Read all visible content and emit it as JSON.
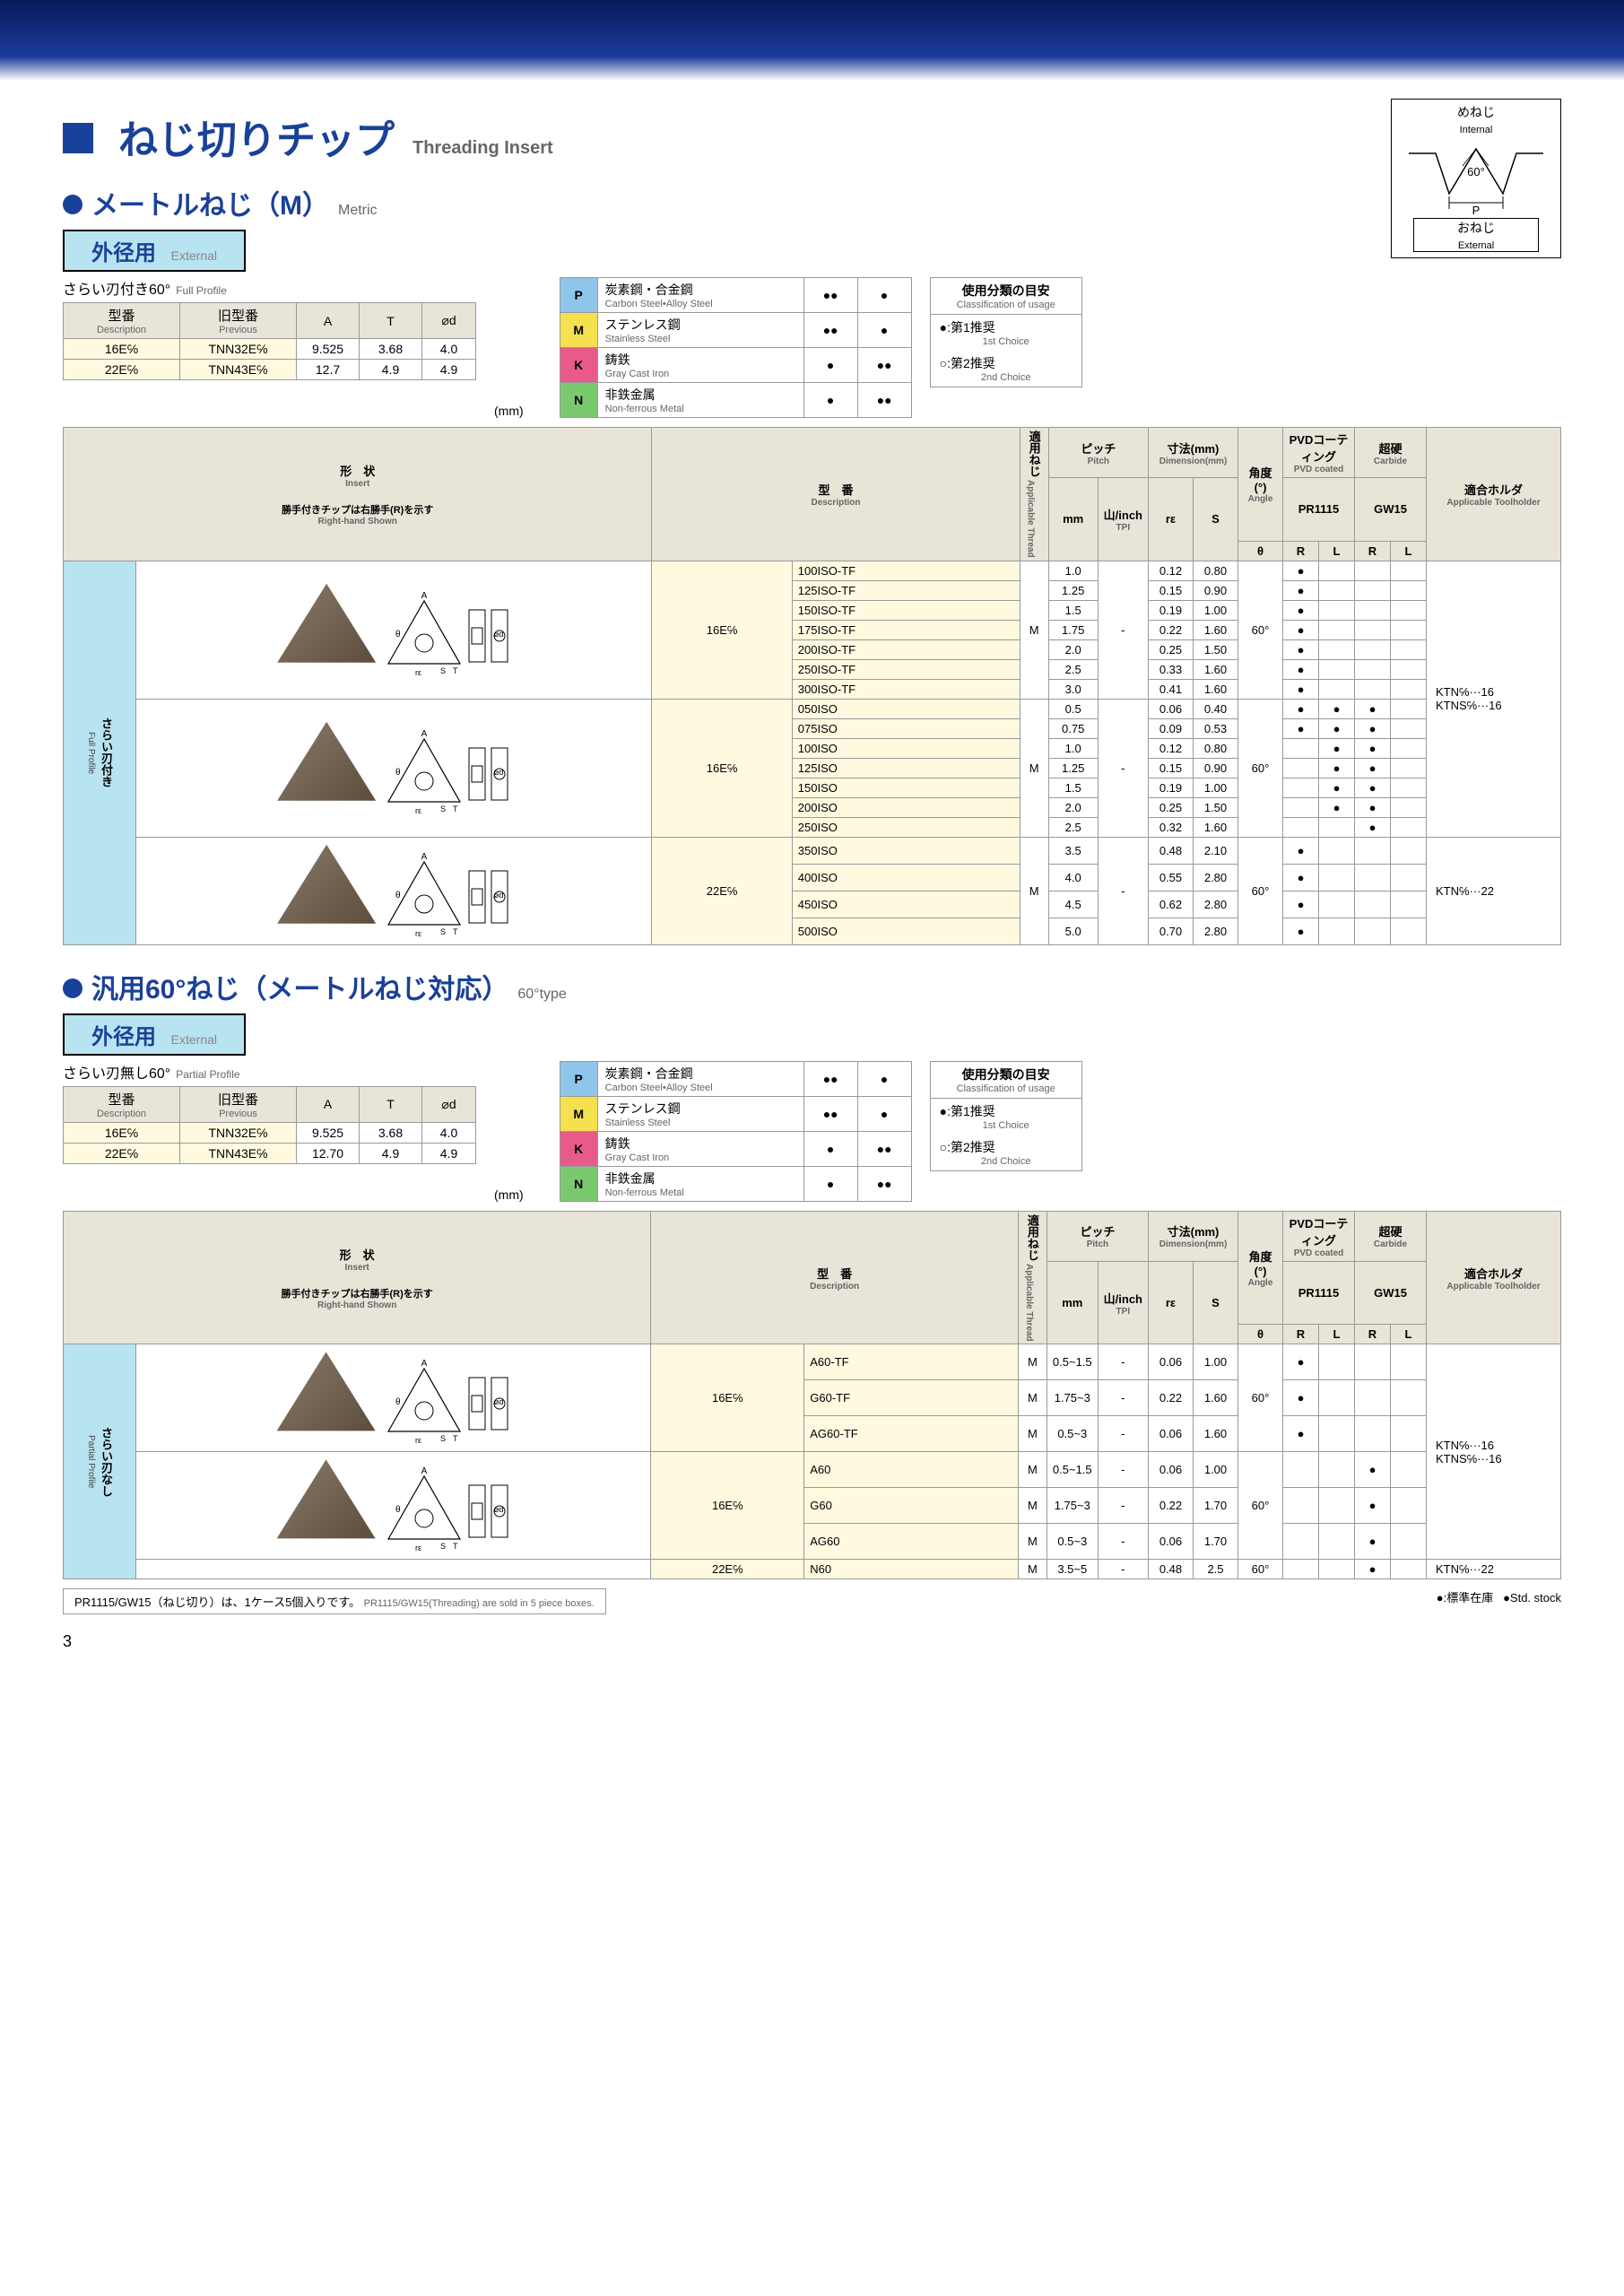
{
  "header": {
    "title_jp": "ねじ切りチップ",
    "title_en": "Threading Insert",
    "section1_jp": "メートルねじ（M）",
    "section1_en": "Metric",
    "section2_jp": "汎用60°ねじ（メートルねじ対応）",
    "section2_en": "60°type",
    "external_jp": "外径用",
    "external_en": "External"
  },
  "diagram": {
    "internal_jp": "めねじ",
    "internal_en": "Internal",
    "angle": "60°",
    "p_label": "P",
    "external_jp": "おねじ",
    "external_en": "External"
  },
  "profile1_jp": "さらい刃付き60°",
  "profile1_en": "Full Profile",
  "profile2_jp": "さらい刃無し60°",
  "profile2_en": "Partial Profile",
  "unit": "(mm)",
  "desc_headers": {
    "desc_jp": "型番",
    "desc_en": "Description",
    "prev_jp": "旧型番",
    "prev_en": "Previous",
    "a": "A",
    "t": "T",
    "od": "⌀d"
  },
  "desc_rows1": [
    {
      "d": "16E℅",
      "p": "TNN32E℅",
      "a": "9.525",
      "t": "3.68",
      "od": "4.0"
    },
    {
      "d": "22E℅",
      "p": "TNN43E℅",
      "a": "12.7",
      "t": "4.9",
      "od": "4.9"
    }
  ],
  "desc_rows2": [
    {
      "d": "16E℅",
      "p": "TNN32E℅",
      "a": "9.525",
      "t": "3.68",
      "od": "4.0"
    },
    {
      "d": "22E℅",
      "p": "TNN43E℅",
      "a": "12.70",
      "t": "4.9",
      "od": "4.9"
    }
  ],
  "materials": [
    {
      "code": "P",
      "bg": "#8ec5e8",
      "jp": "炭素鋼・合金鋼",
      "en": "Carbon Steel•Alloy Steel",
      "d1": true,
      "d2": false
    },
    {
      "code": "M",
      "bg": "#f5e050",
      "jp": "ステンレス鋼",
      "en": "Stainless Steel",
      "d1": true,
      "d2": false
    },
    {
      "code": "K",
      "bg": "#e85a8a",
      "jp": "鋳鉄",
      "en": "Gray Cast Iron",
      "d1": false,
      "d2": true
    },
    {
      "code": "N",
      "bg": "#7bc96f",
      "jp": "非鉄金属",
      "en": "Non-ferrous Metal",
      "d1": false,
      "d2": true
    }
  ],
  "usage": {
    "hd_jp": "使用分類の目安",
    "hd_en": "Classification of usage",
    "r1_jp": "●:第1推奨",
    "r1_en": "1st Choice",
    "r2_jp": "○:第2推奨",
    "r2_en": "2nd Choice"
  },
  "main_headers": {
    "shape_jp": "形　状",
    "shape_en": "Insert",
    "shape_note_jp": "勝手付きチップは右勝手(R)を示す",
    "shape_note_en": "Right-hand Shown",
    "desc_jp": "型　番",
    "desc_en": "Description",
    "thread_jp": "適用ねじ",
    "thread_en": "Applicable Thread",
    "pitch_jp": "ピッチ",
    "pitch_en": "Pitch",
    "mm": "mm",
    "tpi_jp": "山/inch",
    "tpi_en": "TPI",
    "dim_jp": "寸法(mm)",
    "dim_en": "Dimension(mm)",
    "re": "rε",
    "s": "S",
    "theta": "θ",
    "angle_jp": "角度(°)",
    "angle_en": "Angle",
    "pvd_jp": "PVDコーティング",
    "pvd_en": "PVD coated",
    "carbide_jp": "超硬",
    "carbide_en": "Carbide",
    "pr": "PR1115",
    "gw": "GW15",
    "r": "R",
    "l": "L",
    "holder_jp": "適合ホルダ",
    "holder_en": "Applicable Toolholder"
  },
  "side1_jp": "さらい刃付き",
  "side1_en": "Full Profile",
  "side2_jp": "さらい刃なし",
  "side2_en": "Partial Profile",
  "group1a": {
    "prefix": "16E℅",
    "thread": "M",
    "tpi": "-",
    "angle": "60°",
    "rows": [
      {
        "d": "100ISO-TF",
        "mm": "1.0",
        "re": "0.12",
        "s": "0.80"
      },
      {
        "d": "125ISO-TF",
        "mm": "1.25",
        "re": "0.15",
        "s": "0.90"
      },
      {
        "d": "150ISO-TF",
        "mm": "1.5",
        "re": "0.19",
        "s": "1.00"
      },
      {
        "d": "175ISO-TF",
        "mm": "1.75",
        "re": "0.22",
        "s": "1.60"
      },
      {
        "d": "200ISO-TF",
        "mm": "2.0",
        "re": "0.25",
        "s": "1.50"
      },
      {
        "d": "250ISO-TF",
        "mm": "2.5",
        "re": "0.33",
        "s": "1.60"
      },
      {
        "d": "300ISO-TF",
        "mm": "3.0",
        "re": "0.41",
        "s": "1.60"
      }
    ],
    "dots": {
      "pr_r": true,
      "pr_l": false,
      "gw_r": false,
      "gw_l": false
    }
  },
  "group1b": {
    "prefix": "16E℅",
    "thread": "M",
    "tpi": "-",
    "angle": "60°",
    "rows": [
      {
        "d": "050ISO",
        "mm": "0.5",
        "re": "0.06",
        "s": "0.40",
        "dots": [
          true,
          true,
          true,
          false
        ]
      },
      {
        "d": "075ISO",
        "mm": "0.75",
        "re": "0.09",
        "s": "0.53",
        "dots": [
          true,
          true,
          true,
          false
        ]
      },
      {
        "d": "100ISO",
        "mm": "1.0",
        "re": "0.12",
        "s": "0.80",
        "dots": [
          false,
          true,
          true,
          false
        ]
      },
      {
        "d": "125ISO",
        "mm": "1.25",
        "re": "0.15",
        "s": "0.90",
        "dots": [
          false,
          true,
          true,
          false
        ]
      },
      {
        "d": "150ISO",
        "mm": "1.5",
        "re": "0.19",
        "s": "1.00",
        "dots": [
          false,
          true,
          true,
          false
        ]
      },
      {
        "d": "200ISO",
        "mm": "2.0",
        "re": "0.25",
        "s": "1.50",
        "dots": [
          false,
          true,
          true,
          false
        ]
      },
      {
        "d": "250ISO",
        "mm": "2.5",
        "re": "0.32",
        "s": "1.60",
        "dots": [
          false,
          false,
          true,
          false
        ]
      }
    ]
  },
  "group1c": {
    "prefix": "22E℅",
    "thread": "M",
    "tpi": "-",
    "angle": "60°",
    "rows": [
      {
        "d": "350ISO",
        "mm": "3.5",
        "re": "0.48",
        "s": "2.10"
      },
      {
        "d": "400ISO",
        "mm": "4.0",
        "re": "0.55",
        "s": "2.80"
      },
      {
        "d": "450ISO",
        "mm": "4.5",
        "re": "0.62",
        "s": "2.80"
      },
      {
        "d": "500ISO",
        "mm": "5.0",
        "re": "0.70",
        "s": "2.80"
      }
    ],
    "dots": {
      "pr_r": true,
      "pr_l": false,
      "gw_r": false,
      "gw_l": false
    },
    "holder": "KTN℅···22"
  },
  "holder1": "KTN℅···16\nKTNS℅···16",
  "group2a": {
    "prefix": "16E℅",
    "angle": "60°",
    "rows": [
      {
        "d": "A60-TF",
        "th": "M",
        "mm": "0.5~1.5",
        "tpi": "-",
        "re": "0.06",
        "s": "1.00",
        "dots": [
          true,
          false,
          false,
          false
        ]
      },
      {
        "d": "G60-TF",
        "th": "M",
        "mm": "1.75~3",
        "tpi": "-",
        "re": "0.22",
        "s": "1.60",
        "dots": [
          true,
          false,
          false,
          false
        ]
      },
      {
        "d": "AG60-TF",
        "th": "M",
        "mm": "0.5~3",
        "tpi": "-",
        "re": "0.06",
        "s": "1.60",
        "dots": [
          true,
          false,
          false,
          false
        ]
      }
    ]
  },
  "group2b": {
    "prefix": "16E℅",
    "angle": "60°",
    "rows": [
      {
        "d": "A60",
        "th": "M",
        "mm": "0.5~1.5",
        "tpi": "-",
        "re": "0.06",
        "s": "1.00",
        "dots": [
          false,
          false,
          true,
          false
        ]
      },
      {
        "d": "G60",
        "th": "M",
        "mm": "1.75~3",
        "tpi": "-",
        "re": "0.22",
        "s": "1.70",
        "dots": [
          false,
          false,
          true,
          false
        ]
      },
      {
        "d": "AG60",
        "th": "M",
        "mm": "0.5~3",
        "tpi": "-",
        "re": "0.06",
        "s": "1.70",
        "dots": [
          false,
          false,
          true,
          false
        ]
      }
    ]
  },
  "group2c": {
    "prefix": "22E℅",
    "angle": "60°",
    "rows": [
      {
        "d": "N60",
        "th": "M",
        "mm": "3.5~5",
        "tpi": "-",
        "re": "0.48",
        "s": "2.5",
        "dots": [
          false,
          false,
          true,
          false
        ]
      }
    ],
    "holder": "KTN℅···22"
  },
  "holder2": "KTN℅···16\nKTNS℅···16",
  "note_jp": "PR1115/GW15（ねじ切り）は、1ケース5個入りです。",
  "note_en": "PR1115/GW15(Threading) are sold in 5 piece boxes.",
  "stock_jp": "●:標準在庫",
  "stock_en": "●Std. stock",
  "page_num": "3"
}
